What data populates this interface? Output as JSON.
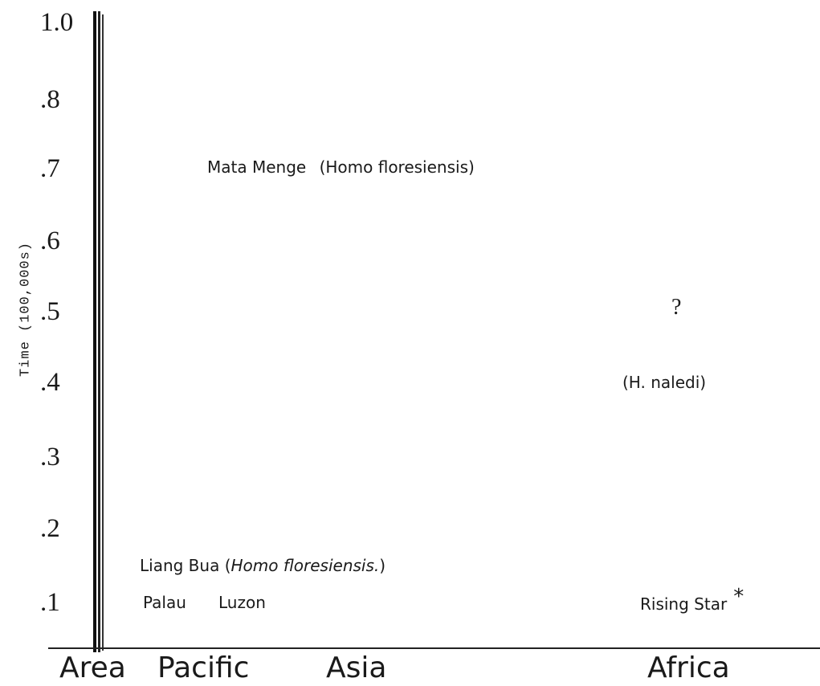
{
  "chart_data": {
    "type": "scatter",
    "ylabel": "Time (100,000s)",
    "yticks": [
      "1.0",
      ".8",
      ".7",
      ".6",
      ".5",
      ".4",
      ".3",
      ".2",
      ".1"
    ],
    "categories": [
      "Area",
      "Pacific",
      "Asia",
      "Africa"
    ],
    "annotations": {
      "mata_menge": {
        "site": "Mata Menge",
        "taxon": "(Homo floresiensis)"
      },
      "liang_bua": {
        "site": "Liang Bua (",
        "taxon": "Homo floresiensis.",
        "close": ")"
      },
      "palau": "Palau",
      "luzon": "Luzon",
      "question": "?",
      "naledi": "(H. naledi)",
      "rising_star": "Rising Star",
      "asterisk": "*"
    }
  }
}
